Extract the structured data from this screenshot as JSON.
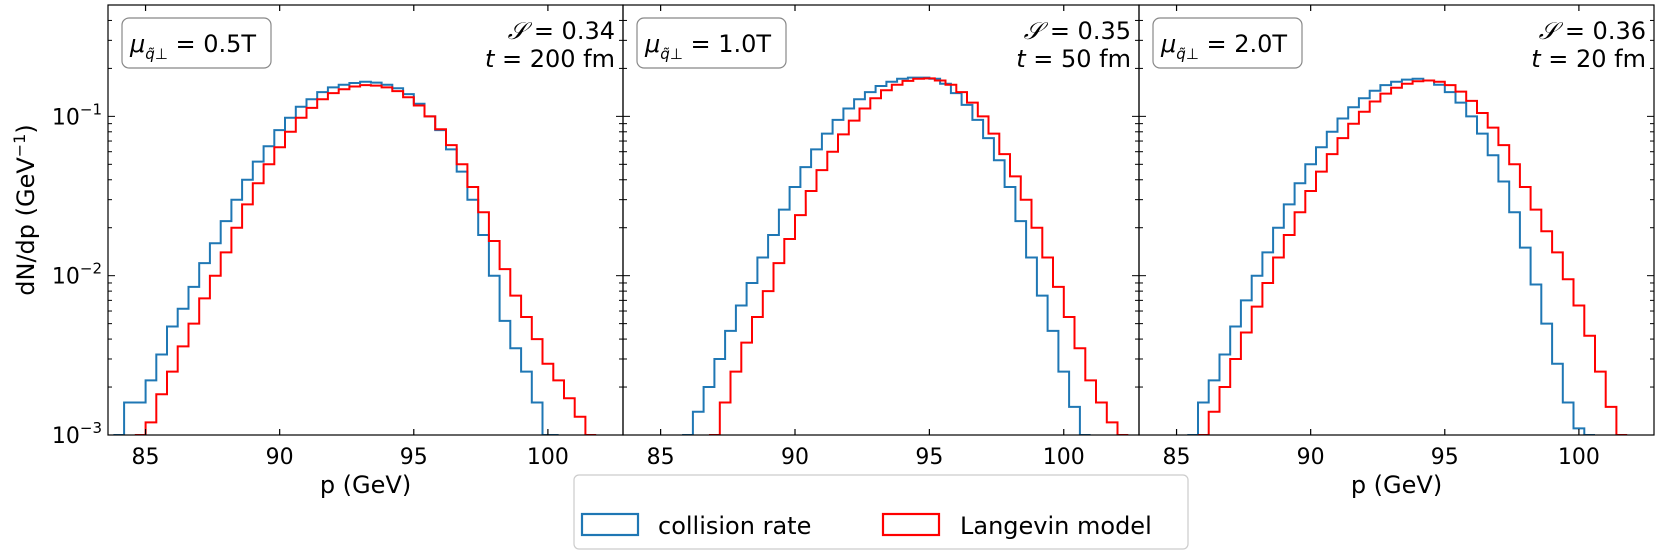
{
  "figure": {
    "ylabel": "dN/dp (GeV",
    "ylabel_sup": "−1",
    "ylabel_close": ")",
    "legend": [
      {
        "label": "collision rate",
        "color": "#1f77b4"
      },
      {
        "label": "Langevin model",
        "color": "#ff0000"
      }
    ]
  },
  "chart_data": [
    {
      "type": "line",
      "title": "",
      "xlabel": "p (GeV)",
      "ylabel": "dN/dp (GeV⁻¹)",
      "xlim": [
        83.6,
        102.8
      ],
      "ylim": [
        0.001,
        0.5
      ],
      "yscale": "log",
      "xticks": [
        85,
        90,
        95,
        100
      ],
      "yticks": [
        {
          "v": 0.1,
          "base": "10",
          "exp": "−1"
        },
        {
          "v": 0.01,
          "base": "10",
          "exp": "−2"
        },
        {
          "v": 0.001,
          "base": "10",
          "exp": "−3"
        }
      ],
      "annotation": {
        "mu_label": "μ",
        "mu_sub": "q̃⊥",
        "mu_value": "= 0.5T",
        "s_label": "𝒮",
        "s_value": "= 0.34",
        "t_label": "t",
        "t_value": "= 200 fm"
      },
      "series": [
        {
          "name": "collision rate",
          "color": "#1f77b4",
          "bin_width": 0.2,
          "x": [
            84.0,
            84.4,
            84.8,
            85.2,
            85.6,
            86.0,
            86.4,
            86.8,
            87.2,
            87.6,
            88.0,
            88.4,
            88.8,
            89.2,
            89.6,
            90.0,
            90.4,
            90.8,
            91.2,
            91.6,
            92.0,
            92.4,
            92.8,
            93.2,
            93.6,
            94.0,
            94.4,
            94.8,
            95.2,
            95.6,
            96.0,
            96.4,
            96.8,
            97.2,
            97.6,
            98.0,
            98.4,
            98.8,
            99.2,
            99.6,
            100.0,
            100.2
          ],
          "y": [
            0.001,
            0.0016,
            0.0016,
            0.0022,
            0.0032,
            0.0048,
            0.0062,
            0.0085,
            0.012,
            0.016,
            0.022,
            0.03,
            0.04,
            0.052,
            0.065,
            0.082,
            0.098,
            0.115,
            0.128,
            0.142,
            0.152,
            0.158,
            0.162,
            0.165,
            0.163,
            0.158,
            0.15,
            0.138,
            0.12,
            0.1,
            0.082,
            0.062,
            0.045,
            0.03,
            0.018,
            0.01,
            0.0052,
            0.0035,
            0.0025,
            0.0016,
            0.001,
            0.001
          ]
        },
        {
          "name": "Langevin model",
          "color": "#ff0000",
          "bin_width": 0.2,
          "x": [
            84.8,
            85.2,
            85.6,
            86.0,
            86.4,
            86.8,
            87.2,
            87.6,
            88.0,
            88.4,
            88.8,
            89.2,
            89.6,
            90.0,
            90.4,
            90.8,
            91.2,
            91.6,
            92.0,
            92.4,
            92.8,
            93.2,
            93.6,
            94.0,
            94.4,
            94.8,
            95.2,
            95.6,
            96.0,
            96.4,
            96.8,
            97.2,
            97.6,
            98.0,
            98.4,
            98.8,
            99.2,
            99.6,
            100.0,
            100.4,
            100.8,
            101.2,
            101.6
          ],
          "y": [
            0.001,
            0.0012,
            0.0018,
            0.0025,
            0.0036,
            0.005,
            0.0072,
            0.01,
            0.014,
            0.02,
            0.028,
            0.038,
            0.05,
            0.064,
            0.08,
            0.098,
            0.113,
            0.128,
            0.14,
            0.148,
            0.154,
            0.157,
            0.156,
            0.152,
            0.144,
            0.132,
            0.117,
            0.1,
            0.083,
            0.066,
            0.05,
            0.036,
            0.025,
            0.0165,
            0.011,
            0.0075,
            0.0055,
            0.004,
            0.0028,
            0.0022,
            0.0017,
            0.0013,
            0.001
          ]
        }
      ]
    },
    {
      "type": "line",
      "title": "",
      "xlabel": "p (GeV)",
      "ylabel": "",
      "xlim": [
        83.6,
        102.8
      ],
      "ylim": [
        0.001,
        0.5
      ],
      "yscale": "log",
      "xticks": [
        85,
        90,
        95,
        100
      ],
      "annotation": {
        "mu_label": "μ",
        "mu_sub": "q̃⊥",
        "mu_value": "= 1.0T",
        "s_label": "𝒮",
        "s_value": "= 0.35",
        "t_label": "t",
        "t_value": "= 50 fm"
      },
      "series": [
        {
          "name": "collision rate",
          "color": "#1f77b4",
          "bin_width": 0.2,
          "x": [
            86.0,
            86.4,
            86.8,
            87.2,
            87.6,
            88.0,
            88.4,
            88.8,
            89.2,
            89.6,
            90.0,
            90.4,
            90.8,
            91.2,
            91.6,
            92.0,
            92.4,
            92.8,
            93.2,
            93.6,
            94.0,
            94.4,
            94.8,
            95.2,
            95.6,
            96.0,
            96.4,
            96.8,
            97.2,
            97.6,
            98.0,
            98.4,
            98.8,
            99.2,
            99.6,
            100.0,
            100.4,
            100.8
          ],
          "y": [
            0.001,
            0.0014,
            0.002,
            0.003,
            0.0045,
            0.0065,
            0.009,
            0.013,
            0.018,
            0.026,
            0.036,
            0.048,
            0.062,
            0.078,
            0.095,
            0.112,
            0.128,
            0.142,
            0.155,
            0.165,
            0.172,
            0.175,
            0.175,
            0.172,
            0.16,
            0.14,
            0.118,
            0.095,
            0.073,
            0.053,
            0.036,
            0.022,
            0.013,
            0.0075,
            0.0045,
            0.0025,
            0.0015,
            0.001
          ]
        },
        {
          "name": "Langevin model",
          "color": "#ff0000",
          "bin_width": 0.2,
          "x": [
            87.0,
            87.4,
            87.8,
            88.2,
            88.6,
            89.0,
            89.4,
            89.8,
            90.2,
            90.6,
            91.0,
            91.4,
            91.8,
            92.2,
            92.6,
            93.0,
            93.4,
            93.8,
            94.2,
            94.6,
            95.0,
            95.4,
            95.8,
            96.2,
            96.6,
            97.0,
            97.4,
            97.8,
            98.2,
            98.6,
            99.0,
            99.4,
            99.8,
            100.2,
            100.6,
            101.0,
            101.4,
            101.8,
            102.2
          ],
          "y": [
            0.001,
            0.0016,
            0.0025,
            0.0038,
            0.0055,
            0.008,
            0.012,
            0.017,
            0.024,
            0.034,
            0.046,
            0.06,
            0.077,
            0.094,
            0.112,
            0.13,
            0.146,
            0.158,
            0.167,
            0.172,
            0.173,
            0.168,
            0.158,
            0.142,
            0.122,
            0.1,
            0.078,
            0.058,
            0.042,
            0.03,
            0.02,
            0.013,
            0.0085,
            0.0055,
            0.0035,
            0.0022,
            0.0016,
            0.0012,
            0.001
          ]
        }
      ]
    },
    {
      "type": "line",
      "title": "",
      "xlabel": "p (GeV)",
      "ylabel": "",
      "xlim": [
        83.6,
        102.8
      ],
      "ylim": [
        0.001,
        0.5
      ],
      "yscale": "log",
      "xticks": [
        85,
        90,
        95,
        100
      ],
      "annotation": {
        "mu_label": "μ",
        "mu_sub": "q̃⊥",
        "mu_value": "= 2.0T",
        "s_label": "𝒮",
        "s_value": "= 0.36",
        "t_label": "t",
        "t_value": "= 20 fm"
      },
      "series": [
        {
          "name": "collision rate",
          "color": "#1f77b4",
          "bin_width": 0.2,
          "x": [
            85.6,
            86.0,
            86.4,
            86.8,
            87.2,
            87.6,
            88.0,
            88.4,
            88.8,
            89.2,
            89.6,
            90.0,
            90.4,
            90.8,
            91.2,
            91.6,
            92.0,
            92.4,
            92.8,
            93.2,
            93.6,
            94.0,
            94.4,
            94.8,
            95.2,
            95.6,
            96.0,
            96.4,
            96.8,
            97.2,
            97.6,
            98.0,
            98.4,
            98.8,
            99.2,
            99.6,
            100.0,
            100.4
          ],
          "y": [
            0.001,
            0.0016,
            0.0022,
            0.0032,
            0.0048,
            0.007,
            0.01,
            0.014,
            0.02,
            0.028,
            0.038,
            0.05,
            0.064,
            0.08,
            0.097,
            0.114,
            0.13,
            0.145,
            0.157,
            0.165,
            0.17,
            0.172,
            0.168,
            0.158,
            0.142,
            0.122,
            0.1,
            0.078,
            0.057,
            0.039,
            0.025,
            0.015,
            0.0088,
            0.005,
            0.0028,
            0.0016,
            0.0011,
            0.001
          ]
        },
        {
          "name": "Langevin model",
          "color": "#ff0000",
          "bin_width": 0.2,
          "x": [
            86.0,
            86.4,
            86.8,
            87.2,
            87.6,
            88.0,
            88.4,
            88.8,
            89.2,
            89.6,
            90.0,
            90.4,
            90.8,
            91.2,
            91.6,
            92.0,
            92.4,
            92.8,
            93.2,
            93.6,
            94.0,
            94.4,
            94.8,
            95.2,
            95.6,
            96.0,
            96.4,
            96.8,
            97.2,
            97.6,
            98.0,
            98.4,
            98.8,
            99.2,
            99.6,
            100.0,
            100.4,
            100.8,
            101.2,
            101.6
          ],
          "y": [
            0.001,
            0.0014,
            0.002,
            0.003,
            0.0044,
            0.0064,
            0.009,
            0.013,
            0.018,
            0.025,
            0.034,
            0.045,
            0.058,
            0.073,
            0.09,
            0.107,
            0.124,
            0.139,
            0.151,
            0.16,
            0.166,
            0.168,
            0.165,
            0.157,
            0.143,
            0.125,
            0.105,
            0.085,
            0.066,
            0.05,
            0.036,
            0.026,
            0.019,
            0.014,
            0.0095,
            0.0065,
            0.0042,
            0.0025,
            0.0015,
            0.001
          ]
        }
      ]
    }
  ]
}
